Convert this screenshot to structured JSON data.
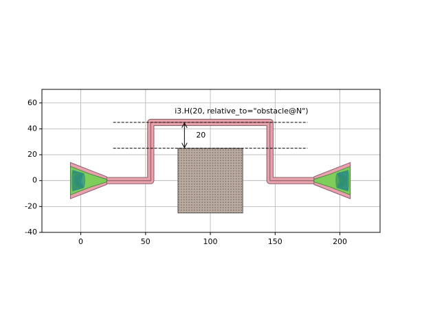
{
  "chart_data": {
    "type": "layout",
    "xlim": [
      -30,
      231
    ],
    "ylim": [
      -40,
      70.5
    ],
    "xticks": [
      0,
      50,
      100,
      150,
      200
    ],
    "yticks": [
      -40,
      -20,
      0,
      20,
      40,
      60
    ],
    "grid": true,
    "obstacle": {
      "x": [
        75,
        125
      ],
      "y": [
        -25,
        25
      ],
      "color": "#b9aaa0"
    },
    "waveguide": {
      "x": [
        20,
        54,
        54,
        146,
        146,
        180
      ],
      "y": [
        0,
        0,
        45,
        45,
        0,
        0
      ],
      "color": "#e8a0ab"
    },
    "couplers": [
      {
        "x": [
          -8,
          20
        ],
        "y": 0
      },
      {
        "x": [
          208,
          180
        ],
        "y": 0
      }
    ],
    "coupler_colors": [
      "#e8a0ab",
      "#7fce5c",
      "#2a8a7a"
    ],
    "dashed_lines": {
      "x": [
        25,
        175
      ],
      "y": [
        25,
        45
      ]
    },
    "dimension": {
      "x": 80,
      "y": [
        25,
        45
      ],
      "label": "20"
    },
    "annotation": "i3.H(20, relative_to=\"obstacle@N\")"
  }
}
